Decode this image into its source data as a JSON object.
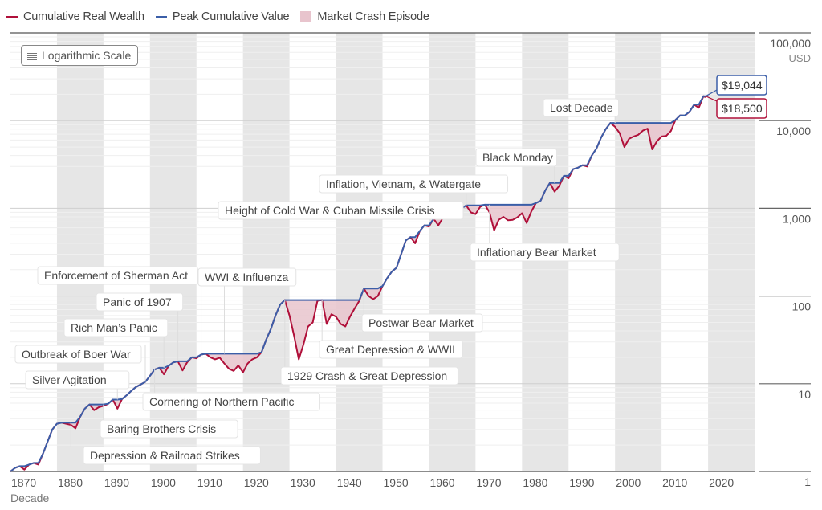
{
  "legend": [
    {
      "label": "Cumulative Real Wealth",
      "kind": "line",
      "color": "#b0103a"
    },
    {
      "label": "Peak Cumulative Value",
      "kind": "line",
      "color": "#3b5ea8"
    },
    {
      "label": "Market Crash Episode",
      "kind": "box",
      "color": "#e8c4cd"
    }
  ],
  "scale_button": {
    "label": "Logarithmic Scale",
    "icon": "lines-icon"
  },
  "chart_data": {
    "type": "line",
    "title": "",
    "xlabel": "Decade",
    "ylabel": "USD",
    "yscale": "log",
    "xlim": [
      1870,
      2030
    ],
    "ylim": [
      1,
      100000
    ],
    "x_ticks": [
      1870,
      1880,
      1890,
      1900,
      1910,
      1920,
      1930,
      1940,
      1950,
      1960,
      1970,
      1980,
      1990,
      2000,
      2010,
      2020
    ],
    "y_ticks": [
      {
        "value": 1,
        "label": "1"
      },
      {
        "value": 10,
        "label": "10"
      },
      {
        "value": 100,
        "label": "100"
      },
      {
        "value": 1000,
        "label": "1,000"
      },
      {
        "value": 10000,
        "label": "10,000"
      },
      {
        "value": 100000,
        "label": "100,000"
      }
    ],
    "y_unit": "USD",
    "shaded_decades": [
      1880,
      1900,
      1920,
      1940,
      1960,
      1980,
      2000,
      2020
    ],
    "grid": true,
    "legend_position": "top-left",
    "series": [
      {
        "name": "Cumulative Real Wealth",
        "color": "#b0103a",
        "points": [
          [
            1870,
            1.0
          ],
          [
            1871,
            1.1
          ],
          [
            1872,
            1.15
          ],
          [
            1873,
            1.05
          ],
          [
            1874,
            1.2
          ],
          [
            1875,
            1.25
          ],
          [
            1876,
            1.2
          ],
          [
            1877,
            1.6
          ],
          [
            1878,
            2.2
          ],
          [
            1879,
            3.0
          ],
          [
            1880,
            3.5
          ],
          [
            1881,
            3.6
          ],
          [
            1882,
            3.5
          ],
          [
            1883,
            3.4
          ],
          [
            1884,
            3.1
          ],
          [
            1885,
            4.2
          ],
          [
            1886,
            5.2
          ],
          [
            1887,
            5.8
          ],
          [
            1888,
            5.0
          ],
          [
            1889,
            5.4
          ],
          [
            1890,
            5.6
          ],
          [
            1891,
            5.9
          ],
          [
            1892,
            6.6
          ],
          [
            1893,
            5.2
          ],
          [
            1894,
            6.7
          ],
          [
            1895,
            7.4
          ],
          [
            1896,
            8.3
          ],
          [
            1897,
            9.2
          ],
          [
            1898,
            9.8
          ],
          [
            1899,
            10.5
          ],
          [
            1900,
            12.3
          ],
          [
            1901,
            14.5
          ],
          [
            1902,
            15.2
          ],
          [
            1903,
            12.8
          ],
          [
            1904,
            16.0
          ],
          [
            1905,
            17.5
          ],
          [
            1906,
            18.0
          ],
          [
            1907,
            14.2
          ],
          [
            1908,
            17.6
          ],
          [
            1909,
            20.0
          ],
          [
            1910,
            19.5
          ],
          [
            1911,
            21.5
          ],
          [
            1912,
            22.0
          ],
          [
            1913,
            20.0
          ],
          [
            1914,
            19.0
          ],
          [
            1915,
            19.8
          ],
          [
            1916,
            17.0
          ],
          [
            1917,
            14.8
          ],
          [
            1918,
            14.0
          ],
          [
            1919,
            16.2
          ],
          [
            1920,
            13.5
          ],
          [
            1921,
            17.0
          ],
          [
            1922,
            19.0
          ],
          [
            1923,
            20.0
          ],
          [
            1924,
            23.0
          ],
          [
            1925,
            32.0
          ],
          [
            1926,
            42.0
          ],
          [
            1927,
            60.0
          ],
          [
            1928,
            80.0
          ],
          [
            1929,
            90.0
          ],
          [
            1930,
            60.0
          ],
          [
            1931,
            35.0
          ],
          [
            1932,
            19.0
          ],
          [
            1933,
            28.0
          ],
          [
            1934,
            45.0
          ],
          [
            1935,
            50.0
          ],
          [
            1936,
            88.0
          ],
          [
            1937,
            90.0
          ],
          [
            1938,
            48.0
          ],
          [
            1939,
            62.0
          ],
          [
            1940,
            58.0
          ],
          [
            1941,
            48.0
          ],
          [
            1942,
            45.0
          ],
          [
            1943,
            58.0
          ],
          [
            1944,
            72.0
          ],
          [
            1945,
            88.0
          ],
          [
            1946,
            122.0
          ],
          [
            1947,
            100.0
          ],
          [
            1948,
            92.0
          ],
          [
            1949,
            100.0
          ],
          [
            1950,
            130.0
          ],
          [
            1951,
            160.0
          ],
          [
            1952,
            190.0
          ],
          [
            1953,
            210.0
          ],
          [
            1954,
            300.0
          ],
          [
            1955,
            430.0
          ],
          [
            1956,
            470.0
          ],
          [
            1957,
            400.0
          ],
          [
            1958,
            550.0
          ],
          [
            1959,
            640.0
          ],
          [
            1960,
            620.0
          ],
          [
            1961,
            760.0
          ],
          [
            1962,
            640.0
          ],
          [
            1963,
            780.0
          ],
          [
            1964,
            910.0
          ],
          [
            1965,
            1000.0
          ],
          [
            1966,
            850.0
          ],
          [
            1967,
            1000.0
          ],
          [
            1968,
            1080.0
          ],
          [
            1969,
            900.0
          ],
          [
            1970,
            860.0
          ],
          [
            1971,
            1040.0
          ],
          [
            1972,
            1100.0
          ],
          [
            1973,
            900.0
          ],
          [
            1974,
            560.0
          ],
          [
            1975,
            740.0
          ],
          [
            1976,
            800.0
          ],
          [
            1977,
            730.0
          ],
          [
            1978,
            740.0
          ],
          [
            1979,
            790.0
          ],
          [
            1980,
            880.0
          ],
          [
            1981,
            680.0
          ],
          [
            1982,
            920.0
          ],
          [
            1983,
            1150.0
          ],
          [
            1984,
            1220.0
          ],
          [
            1985,
            1600.0
          ],
          [
            1986,
            1950.0
          ],
          [
            1987,
            1550.0
          ],
          [
            1988,
            1800.0
          ],
          [
            1989,
            2350.0
          ],
          [
            1990,
            2200.0
          ],
          [
            1991,
            2800.0
          ],
          [
            1992,
            2900.0
          ],
          [
            1993,
            3100.0
          ],
          [
            1994,
            3000.0
          ],
          [
            1995,
            4000.0
          ],
          [
            1996,
            4800.0
          ],
          [
            1997,
            6400.0
          ],
          [
            1998,
            8000.0
          ],
          [
            1999,
            9400.0
          ],
          [
            2000,
            8500.0
          ],
          [
            2001,
            7200.0
          ],
          [
            2002,
            5000.0
          ],
          [
            2003,
            6200.0
          ],
          [
            2004,
            6600.0
          ],
          [
            2005,
            6900.0
          ],
          [
            2006,
            7700.0
          ],
          [
            2007,
            8100.0
          ],
          [
            2008,
            4700.0
          ],
          [
            2009,
            5800.0
          ],
          [
            2010,
            6600.0
          ],
          [
            2011,
            6700.0
          ],
          [
            2012,
            7600.0
          ],
          [
            2013,
            10200.0
          ],
          [
            2014,
            11500.0
          ],
          [
            2015,
            11400.0
          ],
          [
            2016,
            12600.0
          ],
          [
            2017,
            15200.0
          ],
          [
            2018,
            14000.0
          ],
          [
            2019,
            19044.0
          ],
          [
            2019.5,
            18500.0
          ]
        ]
      },
      {
        "name": "Peak Cumulative Value",
        "color": "#3b5ea8",
        "points": []
      }
    ],
    "end_labels": [
      {
        "series": "Peak Cumulative Value",
        "text": "$19,044",
        "color": "#3b5ea8"
      },
      {
        "series": "Cumulative Real Wealth",
        "text": "$18,500",
        "color": "#b0103a"
      }
    ],
    "annotations": [
      {
        "text": "Depression & Railroad Strikes",
        "year": 1883
      },
      {
        "text": "Baring Brothers Crisis",
        "year": 1890
      },
      {
        "text": "Silver Agitation",
        "year": 1893
      },
      {
        "text": "Cornering of Northern Pacific",
        "year": 1901
      },
      {
        "text": "Outbreak of Boer War",
        "year": 1899
      },
      {
        "text": "Rich Man’s Panic",
        "year": 1903
      },
      {
        "text": "Panic of 1907",
        "year": 1906
      },
      {
        "text": "Enforcement of Sherman Act",
        "year": 1911
      },
      {
        "text": "WWI & Influenza",
        "year": 1916
      },
      {
        "text": "1929 Crash & Great Depression",
        "year": 1929
      },
      {
        "text": "Great Depression & WWII",
        "year": 1937
      },
      {
        "text": "Postwar Bear Market",
        "year": 1946
      },
      {
        "text": "Height of Cold War & Cuban Missile Crisis",
        "year": 1961
      },
      {
        "text": "Inflation, Vietnam, & Watergate",
        "year": 1968
      },
      {
        "text": "Inflationary Bear Market",
        "year": 1973
      },
      {
        "text": "Black Monday",
        "year": 1987
      },
      {
        "text": "Lost Decade",
        "year": 2000
      }
    ]
  }
}
